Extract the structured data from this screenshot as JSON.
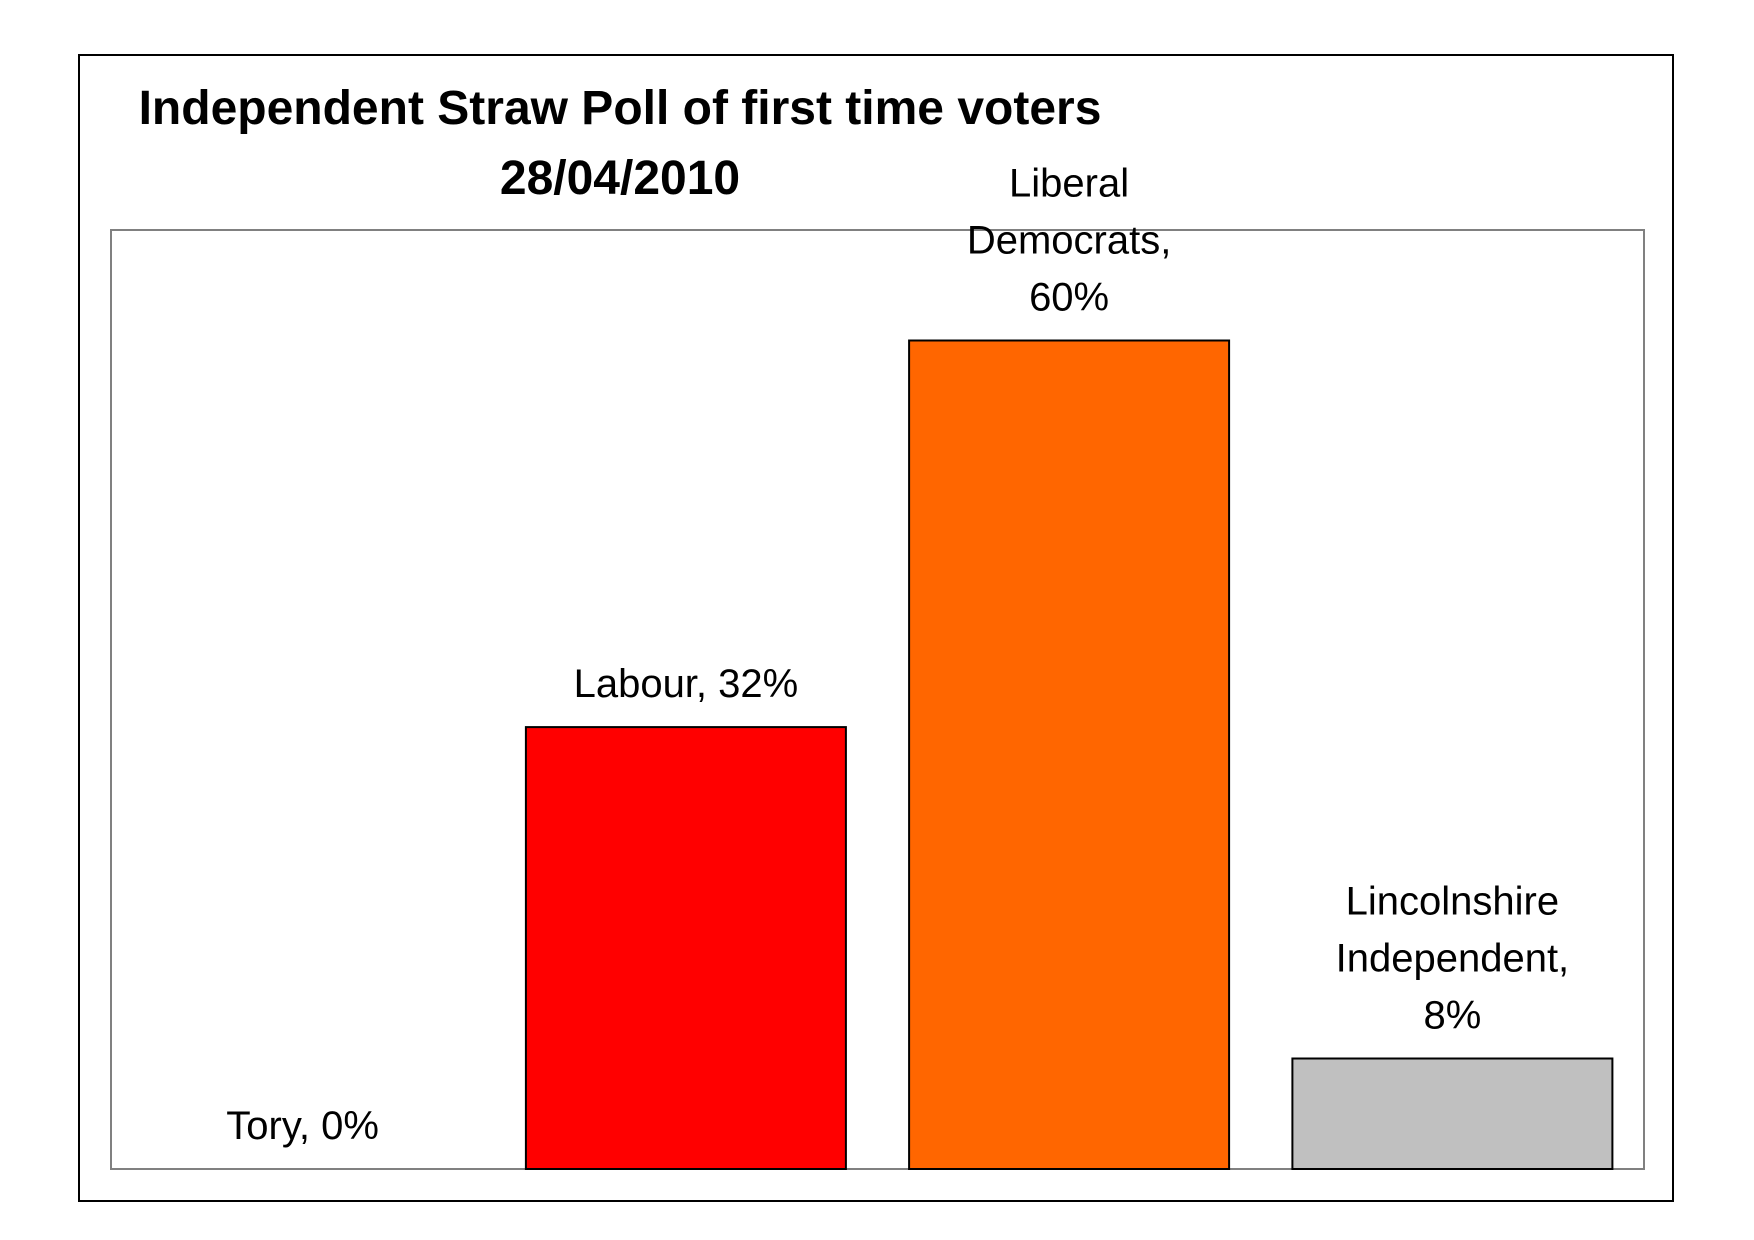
{
  "chart_data": {
    "type": "bar",
    "title": "Independent Straw Poll of first time voters",
    "subtitle": "28/04/2010",
    "xlabel": "",
    "ylabel": "",
    "ylim": [
      0,
      68
    ],
    "grid": false,
    "legend": "none",
    "categories": [
      "Tory",
      "Labour",
      "Liberal Democrats",
      "Lincolnshire Independent"
    ],
    "values": [
      0,
      32,
      60,
      8
    ],
    "data_labels": [
      [
        "Tory, 0%"
      ],
      [
        "Labour, 32%"
      ],
      [
        "Liberal",
        "Democrats,",
        "60%"
      ],
      [
        "Lincolnshire",
        "Independent,",
        "8%"
      ]
    ],
    "colors": [
      "#ffffff",
      "#ff0000",
      "#ff6600",
      "#c0c0c0"
    ],
    "plot_border_color": "#808080"
  }
}
